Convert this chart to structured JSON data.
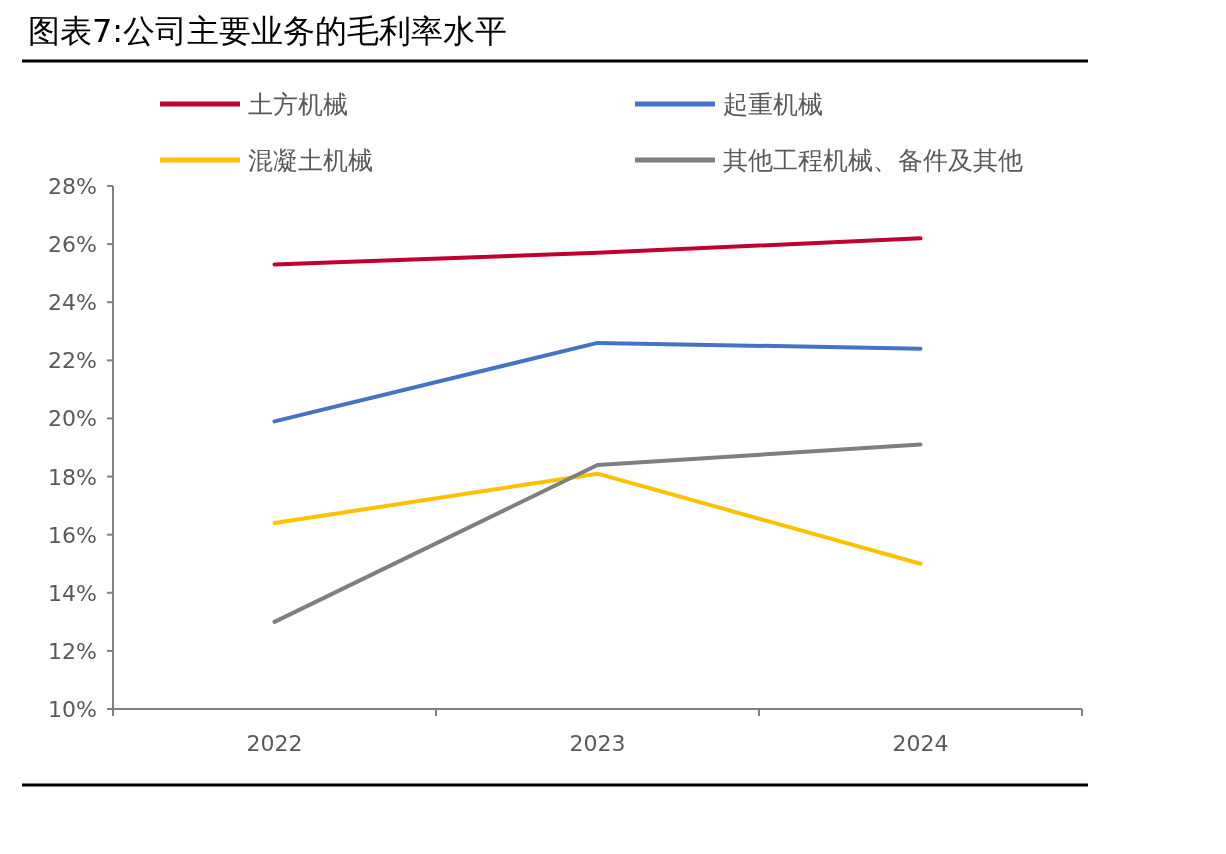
{
  "chart_data": {
    "type": "line",
    "title": "图表7:公司主要业务的毛利率水平",
    "categories": [
      "2022",
      "2023",
      "2024"
    ],
    "series": [
      {
        "name": "土方机械",
        "color": "#c00030",
        "values": [
          25.3,
          25.7,
          26.2
        ]
      },
      {
        "name": "起重机械",
        "color": "#4472c4",
        "values": [
          19.9,
          22.6,
          22.4
        ]
      },
      {
        "name": "混凝土机械",
        "color": "#ffc000",
        "values": [
          16.4,
          18.1,
          15.0
        ]
      },
      {
        "name": "其他工程机械、备件及其他",
        "color": "#7f7f7f",
        "values": [
          13.0,
          18.4,
          19.1
        ]
      }
    ],
    "ylim": [
      10,
      28
    ],
    "yticks": [
      {
        "value": 10,
        "label": "10%"
      },
      {
        "value": 12,
        "label": "12%"
      },
      {
        "value": 14,
        "label": "14%"
      },
      {
        "value": 16,
        "label": "16%"
      },
      {
        "value": 18,
        "label": "18%"
      },
      {
        "value": 20,
        "label": "20%"
      },
      {
        "value": 22,
        "label": "22%"
      },
      {
        "value": 24,
        "label": "24%"
      },
      {
        "value": 26,
        "label": "26%"
      },
      {
        "value": 28,
        "label": "28%"
      }
    ],
    "legend": "top",
    "grid": false,
    "marker": "none",
    "line_style": "solid"
  }
}
